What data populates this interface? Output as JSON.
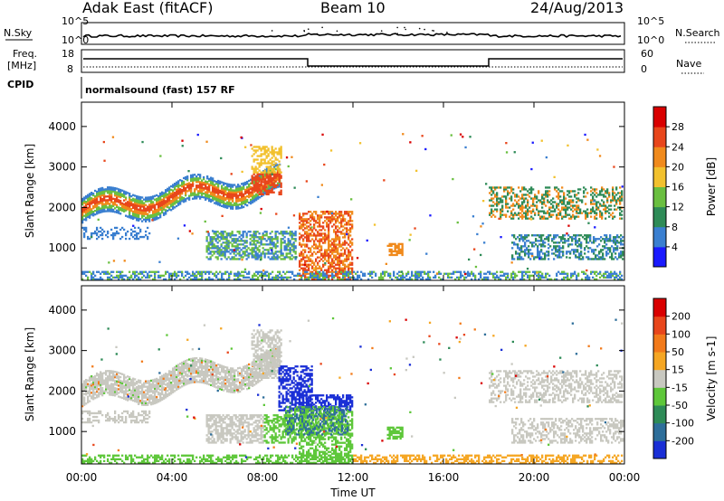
{
  "header": {
    "radar": "Adak East (fitACF)",
    "beam": "Beam 10",
    "date": "24/Aug/2013"
  },
  "mode": "normalsound (fast) 157 RF",
  "strip_labels": {
    "nsky": "N.Sky",
    "nsearch": "N.Search",
    "freq_line1": "Freq.",
    "freq_line2": "[MHz]",
    "nave": "Nave",
    "cpid": "CPID",
    "nsky_top": "10^5",
    "nsky_bottom": "10^0",
    "nsearch_top": "10^5",
    "nsearch_bottom": "10^0",
    "freq_top": "18",
    "freq_bottom": "8",
    "nave_top": "60",
    "nave_bottom": "0"
  },
  "chart_data": [
    {
      "type": "heatmap",
      "name": "power",
      "ylabel": "Slant Range [km]",
      "y_ticks": [
        "1000",
        "2000",
        "3000",
        "4000"
      ],
      "ylim": [
        200,
        4600
      ],
      "colorbar_label": "Power [dB]",
      "colorbar_ticks": [
        "4",
        "8",
        "12",
        "16",
        "20",
        "24",
        "28"
      ],
      "colorbar_colors": [
        "#1a1aff",
        "#3a7fd0",
        "#2e8b57",
        "#6abf40",
        "#f2c12e",
        "#f08a1c",
        "#e8461b",
        "#d90000"
      ],
      "regions": [
        {
          "t0": 0.0,
          "t1": 8.8,
          "r0": 1700,
          "r1": 3300,
          "level": "strong-band"
        },
        {
          "t0": 5.5,
          "t1": 9.5,
          "r0": 700,
          "r1": 1400,
          "level": "medium"
        },
        {
          "t0": 9.8,
          "t1": 12.0,
          "r0": 200,
          "r1": 1900,
          "level": "strong"
        },
        {
          "t0": 13.5,
          "t1": 14.2,
          "r0": 800,
          "r1": 1100,
          "level": "medium"
        },
        {
          "t0": 18.0,
          "t1": 24.0,
          "r0": 700,
          "r1": 2500,
          "level": "medium-band"
        }
      ]
    },
    {
      "type": "heatmap",
      "name": "velocity",
      "ylabel": "Slant Range [km]",
      "y_ticks": [
        "1000",
        "2000",
        "3000",
        "4000"
      ],
      "ylim": [
        200,
        4600
      ],
      "xlabel": "Time UT",
      "x_ticks": [
        "00:00",
        "04:00",
        "08:00",
        "12:00",
        "16:00",
        "20:00",
        "00:00"
      ],
      "xlim": [
        0,
        24
      ],
      "colorbar_label": "Velocity [m s-1]",
      "colorbar_ticks": [
        "200",
        "100",
        "50",
        "15",
        "-15",
        "-50",
        "-100",
        "-200"
      ],
      "colorbar_colors": [
        "#1a2fd6",
        "#2e6e9a",
        "#2e8b57",
        "#5ec73a",
        "#c8c8c0",
        "#f5a623",
        "#f27a1a",
        "#e8461b",
        "#d90000"
      ]
    }
  ]
}
